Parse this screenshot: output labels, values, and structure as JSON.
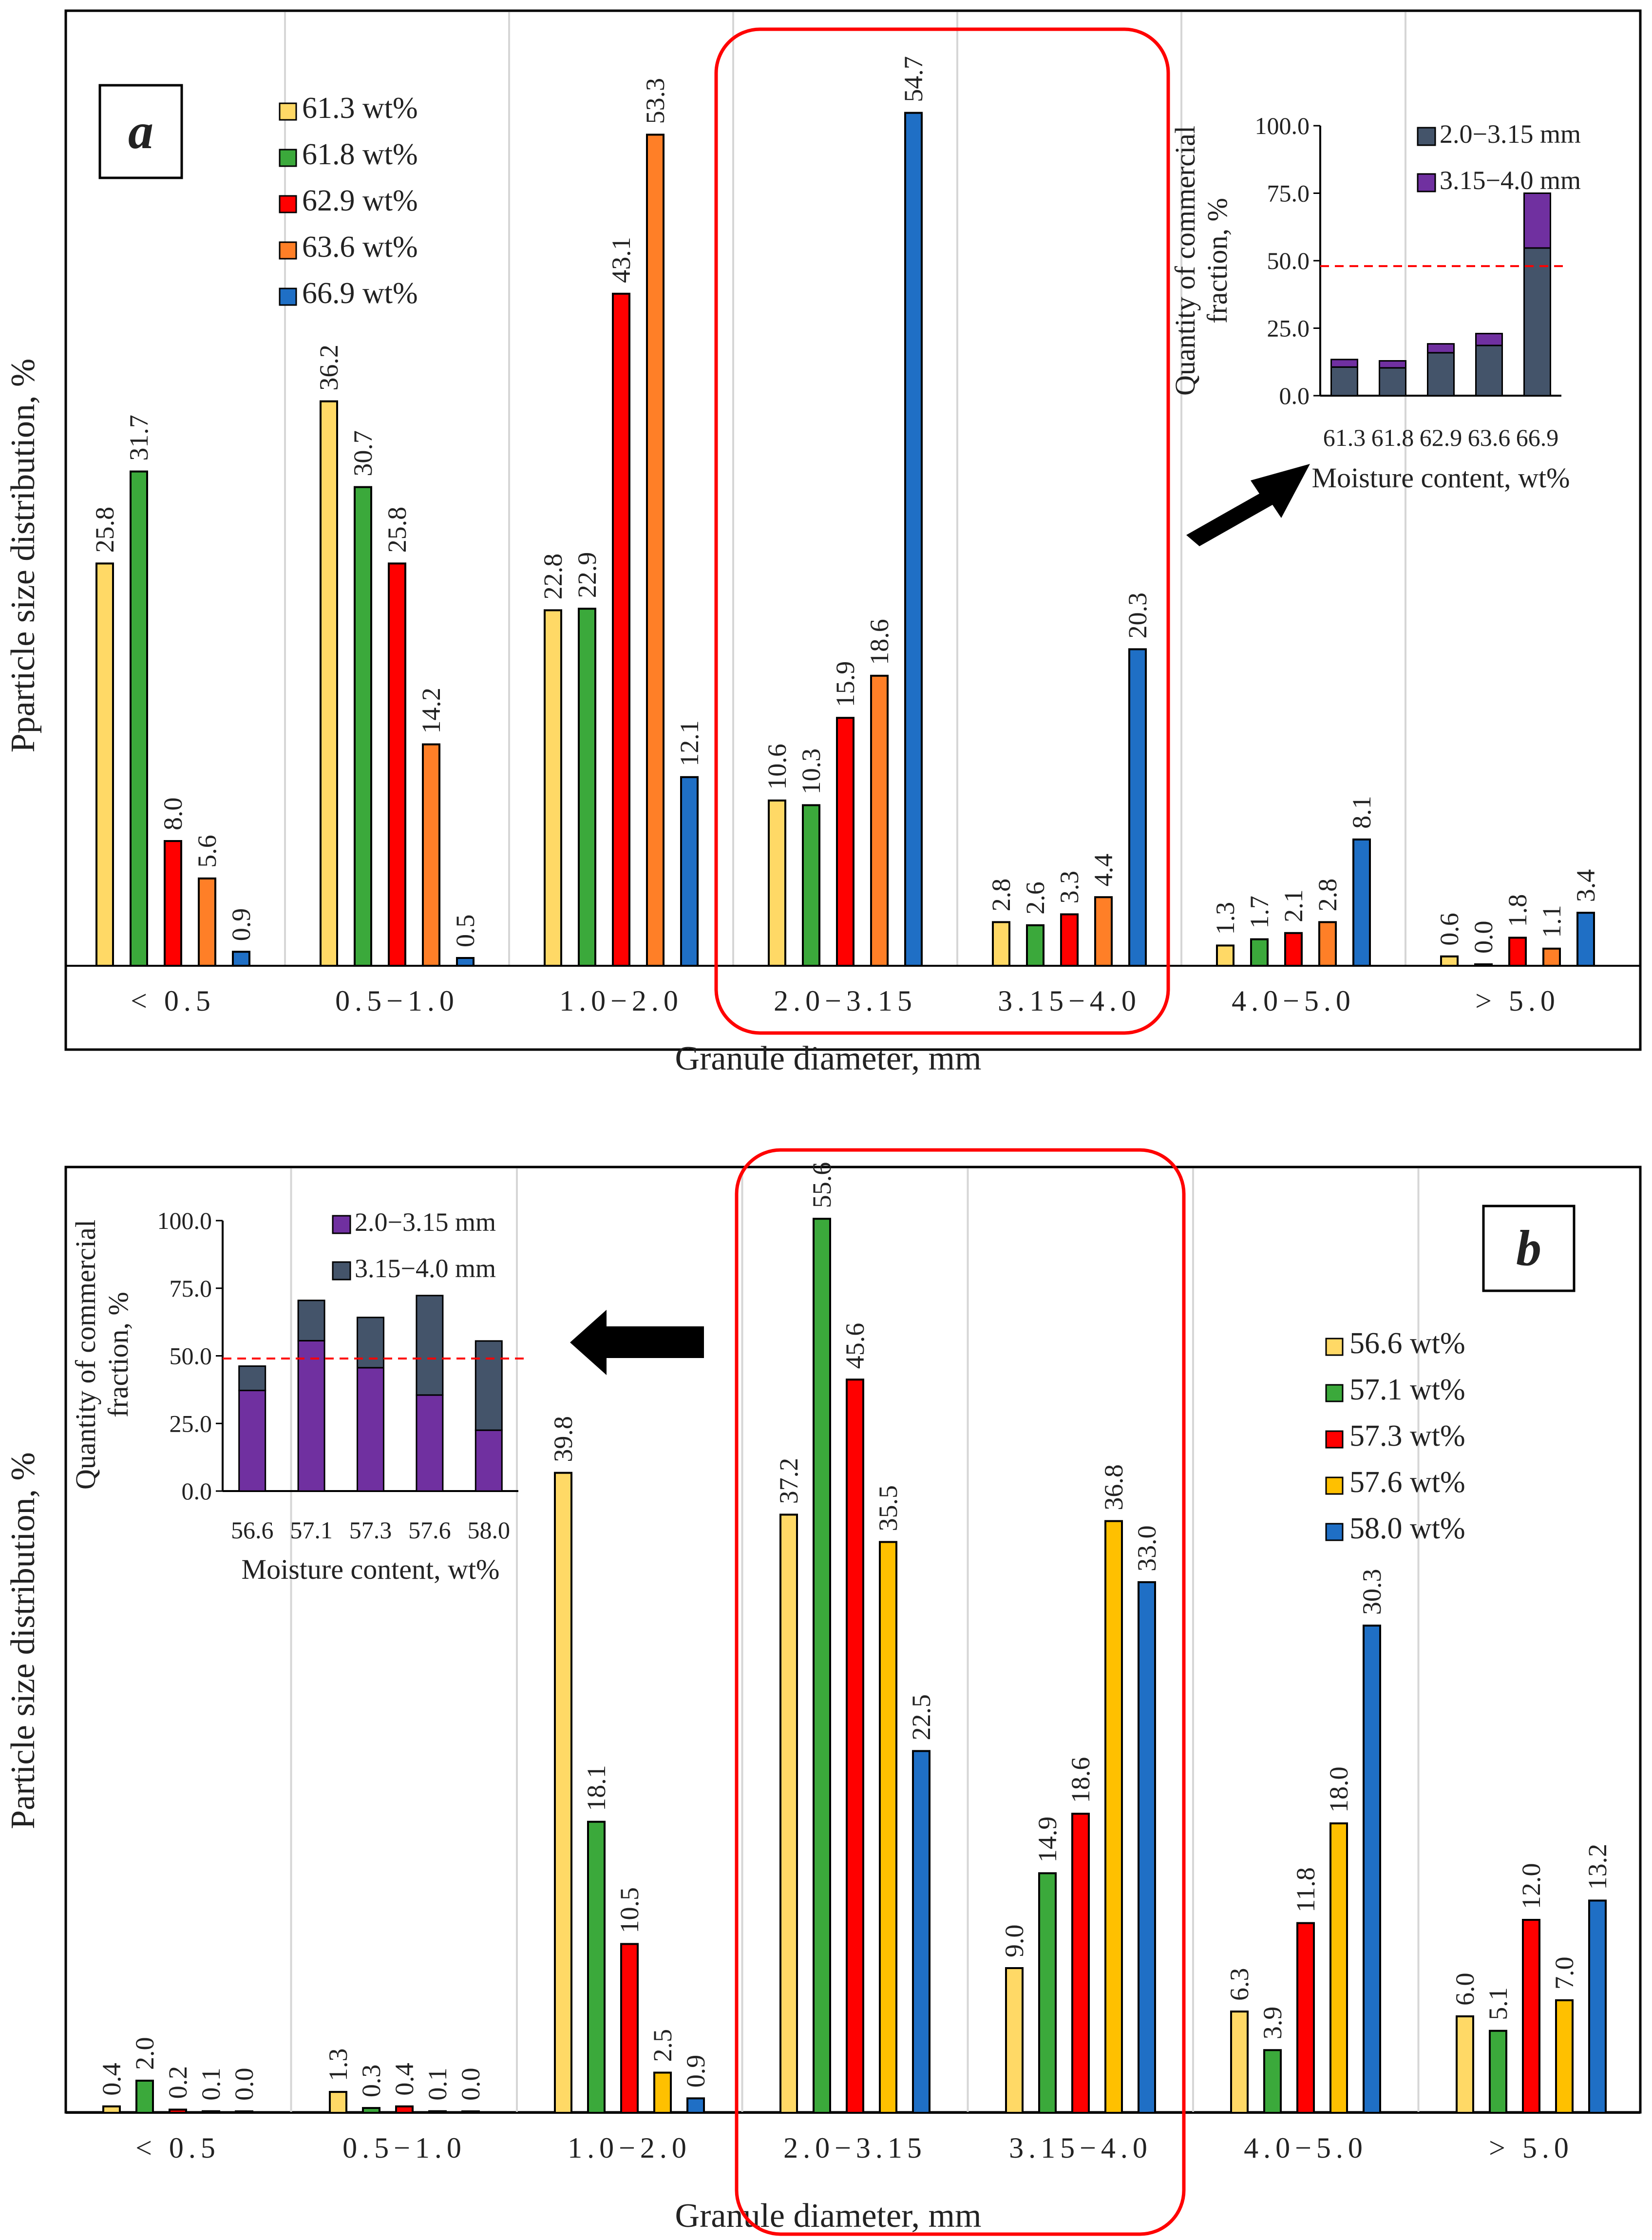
{
  "chart_data": [
    {
      "id": "a",
      "type": "bar",
      "panel_label": "a",
      "xlabel": "Granule diameter, mm",
      "ylabel": "Pparticle size distribution, %",
      "categories": [
        "< 0.5",
        "0.5−1.0",
        "1.0−2.0",
        "2.0−3.15",
        "3.15−4.0",
        "4.0−5.0",
        "> 5.0"
      ],
      "ylim": [
        0,
        60
      ],
      "highlighted_categories": [
        "2.0−3.15",
        "3.15−4.0"
      ],
      "series": [
        {
          "name": "61.3 wt%",
          "color": "#FFD966",
          "values": [
            25.8,
            36.2,
            22.8,
            10.6,
            2.8,
            1.3,
            0.6
          ],
          "labels": [
            "25.8",
            "36.2",
            "22.8",
            "10.6",
            "2.8",
            "1.3",
            "0.6"
          ]
        },
        {
          "name": "61.8 wt%",
          "color": "#3BA93B",
          "values": [
            31.7,
            30.7,
            22.9,
            10.3,
            2.6,
            1.7,
            0.0
          ],
          "labels": [
            "31.7",
            "30.7",
            "22.9",
            "10.3",
            "2.6",
            "1.7",
            "0.0"
          ]
        },
        {
          "name": "62.9 wt%",
          "color": "#FF0000",
          "values": [
            8.0,
            25.8,
            43.1,
            15.9,
            3.3,
            2.1,
            1.8
          ],
          "labels": [
            "8.0",
            "25.8",
            "43.1",
            "15.9",
            "3.3",
            "2.1",
            "1.8"
          ]
        },
        {
          "name": "63.6 wt%",
          "color": "#FF7F27",
          "values": [
            5.6,
            14.2,
            53.3,
            18.6,
            4.4,
            2.8,
            1.1
          ],
          "labels": [
            "5.6",
            "14.2",
            "53.3",
            "18.6",
            "4.4",
            "2.8",
            "1.1"
          ]
        },
        {
          "name": "66.9 wt%",
          "color": "#1F6FC5",
          "values": [
            0.9,
            0.5,
            12.1,
            54.7,
            20.3,
            8.1,
            3.4
          ],
          "labels": [
            "0.9",
            "0.5",
            "12.1",
            "54.7",
            "20.3",
            "8.1",
            "3.4"
          ]
        }
      ],
      "inset": {
        "type": "stacked_bar",
        "xlabel": "Moisture content, wt%",
        "ylabel": "Quantity of commercial fraction, %",
        "ylabel_lines": [
          "Quantity of commercial",
          "fraction, %"
        ],
        "categories": [
          "61.3",
          "61.8",
          "62.9",
          "63.6",
          "66.9"
        ],
        "ylim": [
          0,
          100
        ],
        "yticks": [
          "0.0",
          "25.0",
          "50.0",
          "75.0",
          "100.0"
        ],
        "reference_line": 48,
        "series": [
          {
            "name": "2.0−3.15 mm",
            "color": "#44546A",
            "values": [
              10.6,
              10.3,
              15.9,
              18.6,
              54.7
            ]
          },
          {
            "name": "3.15−4.0 mm",
            "color": "#7030A0",
            "values": [
              2.8,
              2.6,
              3.3,
              4.4,
              20.3
            ]
          }
        ]
      }
    },
    {
      "id": "b",
      "type": "bar",
      "panel_label": "b",
      "xlabel": "Granule diameter, mm",
      "ylabel": "Particle size distribution, %",
      "categories": [
        "< 0.5",
        "0.5−1.0",
        "1.0−2.0",
        "2.0−3.15",
        "3.15−4.0",
        "4.0−5.0",
        "> 5.0"
      ],
      "ylim": [
        0,
        58
      ],
      "highlighted_categories": [
        "2.0−3.15",
        "3.15−4.0"
      ],
      "series": [
        {
          "name": "56.6 wt%",
          "color": "#FFD966",
          "values": [
            0.4,
            1.3,
            39.8,
            37.2,
            9.0,
            6.3,
            6.0
          ],
          "labels": [
            "0.4",
            "1.3",
            "39.8",
            "37.2",
            "9.0",
            "6.3",
            "6.0"
          ]
        },
        {
          "name": "57.1 wt%",
          "color": "#3BA93B",
          "values": [
            2.0,
            0.3,
            18.1,
            55.6,
            14.9,
            3.9,
            5.1
          ],
          "labels": [
            "2.0",
            "0.3",
            "18.1",
            "55.6",
            "14.9",
            "3.9",
            "5.1"
          ]
        },
        {
          "name": "57.3 wt%",
          "color": "#FF0000",
          "values": [
            0.2,
            0.4,
            10.5,
            45.6,
            18.6,
            11.8,
            12.0
          ],
          "labels": [
            "0.2",
            "0.4",
            "10.5",
            "45.6",
            "18.6",
            "11.8",
            "12.0"
          ]
        },
        {
          "name": "57.6 wt%",
          "color": "#FFC000",
          "values": [
            0.1,
            0.1,
            2.5,
            35.5,
            36.8,
            18.0,
            7.0
          ],
          "labels": [
            "0.1",
            "0.1",
            "2.5",
            "35.5",
            "36.8",
            "18.0",
            "7.0"
          ]
        },
        {
          "name": "58.0 wt%",
          "color": "#1F6FC5",
          "values": [
            0.0,
            0.0,
            0.9,
            22.5,
            33.0,
            30.3,
            13.2
          ],
          "labels": [
            "0.0",
            "0.0",
            "0.9",
            "22.5",
            "33.0",
            "30.3",
            "13.2"
          ]
        }
      ],
      "inset": {
        "type": "stacked_bar",
        "xlabel": "Moisture content, wt%",
        "ylabel": "Quantity of commercial fraction, %",
        "ylabel_lines": [
          "Quantity of commercial",
          "fraction, %"
        ],
        "categories": [
          "56.6",
          "57.1",
          "57.3",
          "57.6",
          "58.0"
        ],
        "ylim": [
          0,
          100
        ],
        "yticks": [
          "0.0",
          "25.0",
          "50.0",
          "75.0",
          "100.0"
        ],
        "reference_line": 49,
        "series": [
          {
            "name": "2.0−3.15 mm",
            "color": "#7030A0",
            "values": [
              37.2,
              55.6,
              45.6,
              35.5,
              22.5
            ]
          },
          {
            "name": "3.15−4.0 mm",
            "color": "#44546A",
            "values": [
              9.0,
              14.9,
              18.6,
              36.8,
              33.0
            ]
          }
        ]
      }
    }
  ]
}
